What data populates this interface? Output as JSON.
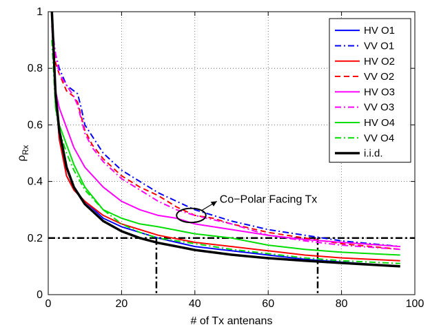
{
  "chart_data": {
    "type": "line",
    "xlabel": "# of Tx antenans",
    "ylabel_main": "ρ",
    "ylabel_sub": "Rx",
    "xlim": [
      0,
      100
    ],
    "ylim": [
      0,
      1
    ],
    "xticks": [
      0,
      20,
      40,
      60,
      80,
      100
    ],
    "yticks": [
      0,
      0.2,
      0.4,
      0.6,
      0.8,
      1
    ],
    "grid": true,
    "legend_position": "top-right",
    "annotation": {
      "text": "Co−Polar Facing Tx",
      "ellipse_center": [
        39,
        0.28
      ],
      "ellipse_radii": [
        4,
        0.025
      ],
      "arrow_to": [
        46,
        0.33
      ],
      "text_at": [
        46,
        0.34
      ]
    },
    "reference_lines": {
      "horizontal_y": 0.2,
      "vertical_x": [
        29.5,
        73.5
      ],
      "dash_style": "dashdot"
    },
    "series": [
      {
        "name": "HV O1",
        "color": "#0000ff",
        "dash": "solid",
        "width": 2,
        "x": [
          1,
          2,
          3,
          5,
          7,
          10,
          15,
          20,
          25,
          30,
          40,
          50,
          60,
          70,
          80,
          96
        ],
        "y": [
          1.0,
          0.72,
          0.55,
          0.42,
          0.37,
          0.33,
          0.27,
          0.24,
          0.22,
          0.2,
          0.17,
          0.155,
          0.14,
          0.125,
          0.115,
          0.1
        ]
      },
      {
        "name": "VV O1",
        "color": "#0000ff",
        "dash": "dashdot",
        "width": 2,
        "x": [
          1,
          2,
          3,
          5,
          7,
          8,
          9,
          10,
          12,
          15,
          20,
          25,
          30,
          35,
          40,
          45,
          50,
          60,
          70,
          80,
          96
        ],
        "y": [
          0.95,
          0.85,
          0.8,
          0.74,
          0.72,
          0.71,
          0.66,
          0.6,
          0.56,
          0.5,
          0.44,
          0.4,
          0.36,
          0.33,
          0.3,
          0.28,
          0.26,
          0.23,
          0.21,
          0.19,
          0.17
        ]
      },
      {
        "name": "HV O2",
        "color": "#ff0000",
        "dash": "solid",
        "width": 2,
        "x": [
          1,
          2,
          3,
          5,
          7,
          10,
          15,
          20,
          25,
          30,
          40,
          50,
          60,
          70,
          80,
          96
        ],
        "y": [
          1.0,
          0.72,
          0.55,
          0.42,
          0.37,
          0.33,
          0.28,
          0.25,
          0.23,
          0.21,
          0.185,
          0.17,
          0.155,
          0.14,
          0.13,
          0.12
        ]
      },
      {
        "name": "VV O2",
        "color": "#ff0000",
        "dash": "dashed",
        "width": 2,
        "x": [
          1,
          2,
          3,
          5,
          7,
          8,
          10,
          12,
          15,
          20,
          25,
          30,
          35,
          40,
          45,
          50,
          60,
          70,
          80,
          96
        ],
        "y": [
          0.95,
          0.82,
          0.78,
          0.72,
          0.7,
          0.68,
          0.58,
          0.53,
          0.48,
          0.42,
          0.38,
          0.35,
          0.31,
          0.28,
          0.27,
          0.25,
          0.22,
          0.2,
          0.18,
          0.16
        ]
      },
      {
        "name": "HV O3",
        "color": "#ff00ff",
        "dash": "solid",
        "width": 2,
        "x": [
          1,
          2,
          3,
          5,
          7,
          10,
          15,
          20,
          25,
          30,
          35,
          40,
          50,
          60,
          70,
          80,
          96
        ],
        "y": [
          0.95,
          0.72,
          0.66,
          0.59,
          0.52,
          0.45,
          0.38,
          0.33,
          0.3,
          0.28,
          0.27,
          0.25,
          0.23,
          0.21,
          0.195,
          0.185,
          0.17
        ]
      },
      {
        "name": "VV O3",
        "color": "#ff00ff",
        "dash": "dashdot",
        "width": 2,
        "x": [
          1,
          2,
          3,
          5,
          7,
          8,
          10,
          12,
          15,
          20,
          25,
          30,
          35,
          40,
          50,
          60,
          70,
          80,
          96
        ],
        "y": [
          0.95,
          0.85,
          0.78,
          0.74,
          0.7,
          0.67,
          0.57,
          0.52,
          0.47,
          0.41,
          0.37,
          0.33,
          0.3,
          0.28,
          0.25,
          0.21,
          0.19,
          0.175,
          0.16
        ]
      },
      {
        "name": "HV O4",
        "color": "#00dd00",
        "dash": "solid",
        "width": 2,
        "x": [
          1,
          2,
          3,
          5,
          7,
          10,
          15,
          20,
          25,
          30,
          40,
          50,
          60,
          70,
          80,
          96
        ],
        "y": [
          1.0,
          0.66,
          0.6,
          0.53,
          0.46,
          0.38,
          0.3,
          0.27,
          0.25,
          0.24,
          0.215,
          0.2,
          0.175,
          0.16,
          0.15,
          0.14
        ]
      },
      {
        "name": "VV O4",
        "color": "#00dd00",
        "dash": "dashdot",
        "width": 2,
        "x": [
          1,
          2,
          3,
          5,
          7,
          10,
          15,
          20,
          25,
          30,
          40,
          50,
          60,
          70,
          80,
          96
        ],
        "y": [
          0.9,
          0.66,
          0.58,
          0.5,
          0.44,
          0.37,
          0.3,
          0.25,
          0.22,
          0.2,
          0.18,
          0.16,
          0.145,
          0.13,
          0.12,
          0.11
        ]
      },
      {
        "name": "i.i.d.",
        "color": "#000000",
        "dash": "solid",
        "width": 3.5,
        "x": [
          1,
          2,
          3,
          5,
          7,
          10,
          15,
          20,
          25,
          30,
          40,
          50,
          60,
          70,
          80,
          96
        ],
        "y": [
          1.0,
          0.71,
          0.58,
          0.45,
          0.38,
          0.32,
          0.26,
          0.224,
          0.2,
          0.183,
          0.158,
          0.141,
          0.129,
          0.12,
          0.112,
          0.1
        ]
      }
    ]
  }
}
